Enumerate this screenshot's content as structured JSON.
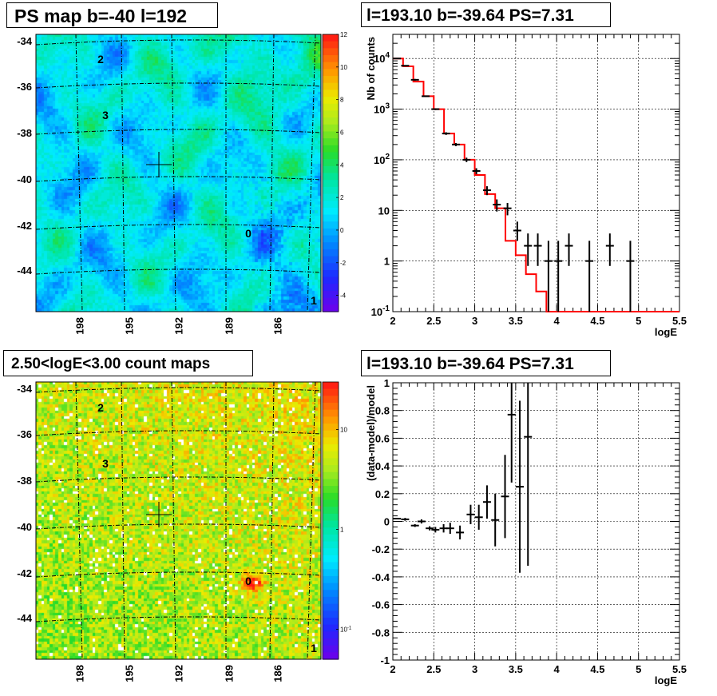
{
  "titles": {
    "ps_map": "PS map b=-40 l=192",
    "spectrum": "l=193.10 b=-39.64 PS=7.31",
    "count_map": "2.50<logE<3.00 count maps",
    "residuals": "l=193.10 b=-39.64 PS=7.31"
  },
  "colors": {
    "data": "#000000",
    "model": "#ff0000",
    "grid": "#000000"
  },
  "chart_data": [
    {
      "type": "heatmap",
      "title": "PS map b=-40 l=192",
      "y_ticks": [
        "-34",
        "-36",
        "-38",
        "-40",
        "-42",
        "-44"
      ],
      "x_ticks": [
        "198",
        "195",
        "192",
        "189",
        "186"
      ],
      "colorbar": {
        "scale": "linear",
        "min": -5,
        "max": 12,
        "labels": [
          "12",
          "10",
          "8",
          "6",
          "4",
          "2",
          "0",
          "-2",
          "-4"
        ]
      },
      "sources": [
        "2",
        "3",
        "0",
        "1"
      ],
      "marker": "+"
    },
    {
      "type": "line",
      "title": "l=193.10 b=-39.64 PS=7.31",
      "xlabel": "logE",
      "ylabel": "Nb of counts",
      "yscale": "log",
      "xlim": [
        2,
        5.5
      ],
      "ylim": [
        0.1,
        30000
      ],
      "x_ticks": [
        "2",
        "2.5",
        "3",
        "3.5",
        "4",
        "4.5",
        "5",
        "5.5"
      ],
      "y_ticks": [
        "10^-1",
        "1",
        "10",
        "10^2",
        "10^3",
        "10^4"
      ],
      "grid": true,
      "series": [
        {
          "kind": "model-histogram",
          "bin_edges": [
            2.0,
            2.125,
            2.25,
            2.375,
            2.5,
            2.625,
            2.75,
            2.875,
            3.0,
            3.125,
            3.25,
            3.375,
            3.5,
            3.625,
            3.75,
            3.875,
            4.0,
            5.5
          ],
          "values": [
            10000,
            7000,
            3500,
            1800,
            1000,
            330,
            200,
            100,
            50,
            21,
            11,
            2.5,
            1.3,
            0.55,
            0.25,
            0.1,
            0.1
          ]
        },
        {
          "kind": "data-points",
          "x": [
            2.05,
            2.15,
            2.27,
            2.4,
            2.52,
            2.65,
            2.77,
            2.9,
            3.02,
            3.15,
            3.27,
            3.4,
            3.52,
            3.65,
            3.77,
            3.9,
            4.02,
            4.15,
            4.4,
            4.65,
            4.9
          ],
          "y": [
            10000,
            7200,
            3800,
            1800,
            1000,
            330,
            200,
            100,
            60,
            25,
            13,
            11,
            4,
            2,
            2,
            1,
            1,
            2,
            1,
            2,
            1
          ],
          "yerr": [
            [
              9800,
              10200
            ],
            [
              7000,
              7400
            ],
            [
              3650,
              3950
            ],
            [
              1750,
              1850
            ],
            [
              960,
              1040
            ],
            [
              310,
              350
            ],
            [
              186,
              214
            ],
            [
              90,
              110
            ],
            [
              52,
              68
            ],
            [
              20,
              30
            ],
            [
              9.5,
              16.5
            ],
            [
              8,
              14
            ],
            [
              2.5,
              6
            ],
            [
              0.8,
              3.5
            ],
            [
              0.8,
              3.5
            ],
            [
              0.1,
              2.5
            ],
            [
              0.1,
              2.5
            ],
            [
              0.8,
              3.5
            ],
            [
              0.1,
              2.5
            ],
            [
              0.8,
              3.5
            ],
            [
              0.1,
              2.5
            ]
          ]
        }
      ]
    },
    {
      "type": "heatmap",
      "title": "2.50<logE<3.00 count maps",
      "y_ticks": [
        "-34",
        "-36",
        "-38",
        "-40",
        "-42",
        "-44"
      ],
      "x_ticks": [
        "198",
        "195",
        "192",
        "189",
        "186"
      ],
      "colorbar": {
        "scale": "log",
        "min": 0.05,
        "max": 30,
        "labels": [
          "10",
          "1",
          "10^-1"
        ]
      },
      "sources": [
        "2",
        "3",
        "0",
        "1"
      ],
      "marker": "+"
    },
    {
      "type": "scatter",
      "title": "l=193.10 b=-39.64 PS=7.31",
      "xlabel": "logE",
      "ylabel": "(data-model)/model",
      "xlim": [
        2,
        5.5
      ],
      "ylim": [
        -1,
        1
      ],
      "x_ticks": [
        "2",
        "2.5",
        "3",
        "3.5",
        "4",
        "4.5",
        "5",
        "5.5"
      ],
      "y_ticks": [
        "-1",
        "-0.8",
        "-0.6",
        "-0.4",
        "-0.2",
        "0",
        "0.2",
        "0.4",
        "0.6",
        "0.8",
        "1"
      ],
      "grid": true,
      "points": [
        {
          "x": 2.05,
          "y": 0.02,
          "lo": 0.015,
          "hi": 0.025
        },
        {
          "x": 2.15,
          "y": 0.015,
          "lo": 0.005,
          "hi": 0.025
        },
        {
          "x": 2.27,
          "y": -0.03,
          "lo": -0.04,
          "hi": -0.02
        },
        {
          "x": 2.35,
          "y": 0.0,
          "lo": -0.015,
          "hi": 0.015
        },
        {
          "x": 2.45,
          "y": -0.05,
          "lo": -0.065,
          "hi": -0.035
        },
        {
          "x": 2.52,
          "y": -0.06,
          "lo": -0.08,
          "hi": -0.04
        },
        {
          "x": 2.62,
          "y": -0.05,
          "lo": -0.08,
          "hi": -0.02
        },
        {
          "x": 2.7,
          "y": -0.05,
          "lo": -0.09,
          "hi": -0.01
        },
        {
          "x": 2.82,
          "y": -0.08,
          "lo": -0.13,
          "hi": -0.03
        },
        {
          "x": 2.95,
          "y": 0.05,
          "lo": -0.02,
          "hi": 0.12
        },
        {
          "x": 3.05,
          "y": 0.03,
          "lo": -0.06,
          "hi": 0.12
        },
        {
          "x": 3.15,
          "y": 0.14,
          "lo": 0.02,
          "hi": 0.26
        },
        {
          "x": 3.25,
          "y": 0.01,
          "lo": -0.18,
          "hi": 0.2
        },
        {
          "x": 3.37,
          "y": 0.18,
          "lo": -0.12,
          "hi": 0.48
        },
        {
          "x": 3.45,
          "y": 0.77,
          "lo": 0.28,
          "hi": 1.0
        },
        {
          "x": 3.55,
          "y": 0.25,
          "lo": -0.37,
          "hi": 0.87
        },
        {
          "x": 3.65,
          "y": 0.61,
          "lo": -0.32,
          "hi": 1.0
        }
      ]
    }
  ]
}
